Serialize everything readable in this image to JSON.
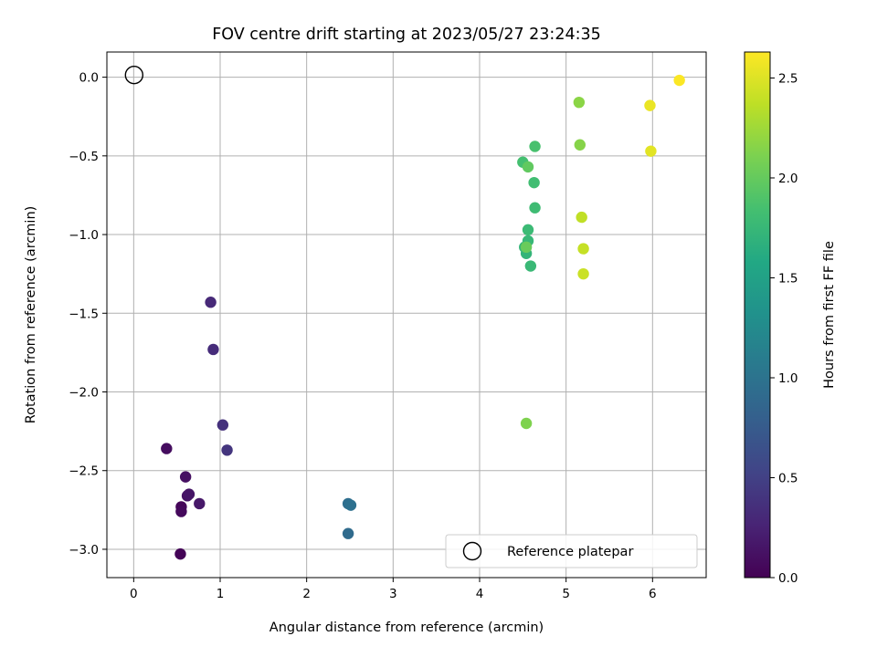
{
  "chart_data": {
    "type": "scatter",
    "title": "FOV centre drift starting at 2023/05/27 23:24:35",
    "xlabel": "Angular distance from reference (arcmin)",
    "ylabel": "Rotation from reference (arcmin)",
    "xlim": [
      -0.31,
      6.62
    ],
    "ylim": [
      -3.18,
      0.16
    ],
    "xticks": [
      0,
      1,
      2,
      3,
      4,
      5,
      6
    ],
    "xtick_labels": [
      "0",
      "1",
      "2",
      "3",
      "4",
      "5",
      "6"
    ],
    "yticks": [
      0.0,
      -0.5,
      -1.0,
      -1.5,
      -2.0,
      -2.5,
      -3.0
    ],
    "ytick_labels": [
      "0.0",
      "−0.5",
      "−1.0",
      "−1.5",
      "−2.0",
      "−2.5",
      "−3.0"
    ],
    "grid": true,
    "legend": {
      "placement": "lower-right",
      "entries": [
        "Reference platepar"
      ]
    },
    "reference_point": {
      "x": 0,
      "y": 0,
      "marker": "open-circle"
    },
    "colorbar": {
      "label": "Hours from first FF file",
      "colormap": "viridis",
      "range": [
        0.0,
        2.63
      ],
      "ticks": [
        0.0,
        0.5,
        1.0,
        1.5,
        2.0,
        2.5
      ],
      "tick_labels": [
        "0.0",
        "0.5",
        "1.0",
        "1.5",
        "2.0",
        "2.5"
      ]
    },
    "series": [
      {
        "points": [
          {
            "x": 0.54,
            "y": -3.03,
            "c": 0.02
          },
          {
            "x": 0.55,
            "y": -2.73,
            "c": 0.04
          },
          {
            "x": 0.55,
            "y": -2.76,
            "c": 0.06
          },
          {
            "x": 0.38,
            "y": -2.36,
            "c": 0.09
          },
          {
            "x": 0.6,
            "y": -2.54,
            "c": 0.11
          },
          {
            "x": 0.62,
            "y": -2.66,
            "c": 0.13
          },
          {
            "x": 0.64,
            "y": -2.65,
            "c": 0.15
          },
          {
            "x": 0.76,
            "y": -2.71,
            "c": 0.17
          },
          {
            "x": 0.89,
            "y": -1.43,
            "c": 0.3
          },
          {
            "x": 0.92,
            "y": -1.73,
            "c": 0.33
          },
          {
            "x": 1.03,
            "y": -2.21,
            "c": 0.37
          },
          {
            "x": 1.08,
            "y": -2.37,
            "c": 0.4
          },
          {
            "x": 2.48,
            "y": -2.9,
            "c": 0.92
          },
          {
            "x": 2.48,
            "y": -2.71,
            "c": 0.95
          },
          {
            "x": 2.51,
            "y": -2.72,
            "c": 0.97
          },
          {
            "x": 4.54,
            "y": -1.12,
            "c": 1.72
          },
          {
            "x": 4.52,
            "y": -1.08,
            "c": 1.74
          },
          {
            "x": 4.56,
            "y": -1.04,
            "c": 1.75
          },
          {
            "x": 4.59,
            "y": -1.2,
            "c": 1.76
          },
          {
            "x": 4.56,
            "y": -0.97,
            "c": 1.78
          },
          {
            "x": 4.64,
            "y": -0.83,
            "c": 1.8
          },
          {
            "x": 4.63,
            "y": -0.67,
            "c": 1.82
          },
          {
            "x": 4.5,
            "y": -0.54,
            "c": 1.84
          },
          {
            "x": 4.64,
            "y": -0.44,
            "c": 1.86
          },
          {
            "x": 4.56,
            "y": -0.57,
            "c": 1.98
          },
          {
            "x": 4.54,
            "y": -1.08,
            "c": 2.02
          },
          {
            "x": 4.54,
            "y": -2.2,
            "c": 2.12
          },
          {
            "x": 5.16,
            "y": -0.43,
            "c": 2.15
          },
          {
            "x": 5.15,
            "y": -0.16,
            "c": 2.17
          },
          {
            "x": 5.18,
            "y": -0.89,
            "c": 2.38
          },
          {
            "x": 5.2,
            "y": -1.09,
            "c": 2.4
          },
          {
            "x": 5.2,
            "y": -1.25,
            "c": 2.42
          },
          {
            "x": 5.98,
            "y": -0.47,
            "c": 2.52
          },
          {
            "x": 5.97,
            "y": -0.18,
            "c": 2.55
          },
          {
            "x": 6.31,
            "y": -0.02,
            "c": 2.62
          }
        ]
      }
    ]
  }
}
